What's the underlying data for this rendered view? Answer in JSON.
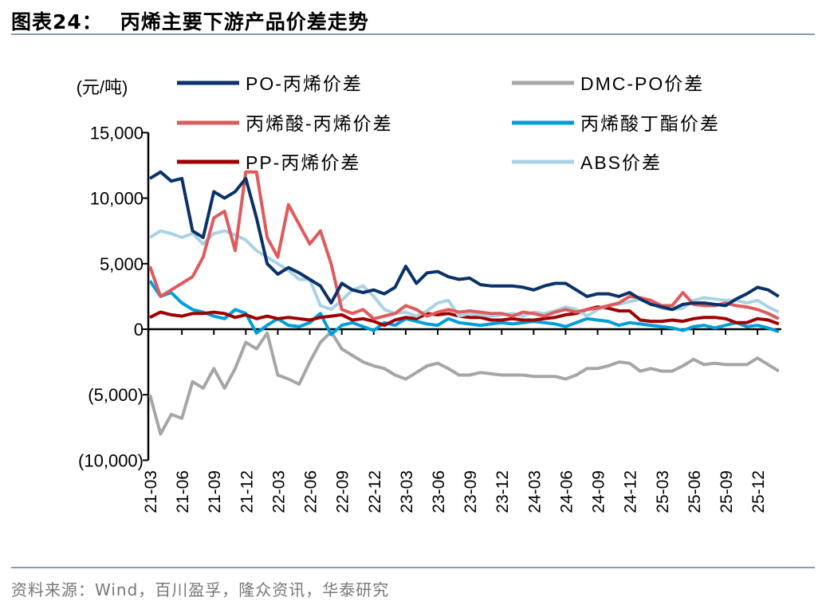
{
  "title_prefix": "图表24：",
  "title": "丙烯主要下游产品价差走势",
  "source": "资料来源：Wind，百川盈孚，隆众资讯，华泰研究",
  "chart_data": {
    "type": "line",
    "unit_label": "(元/吨)",
    "ylim": [
      -10000,
      15000
    ],
    "yticks": [
      15000,
      10000,
      5000,
      0,
      -5000,
      -10000
    ],
    "ytick_labels": [
      "15,000",
      "10,000",
      "5,000",
      "0",
      "(5,000)",
      "(10,000)"
    ],
    "xtick_labels": [
      "21-03",
      "21-06",
      "21-09",
      "21-12",
      "22-03",
      "22-06",
      "22-09",
      "22-12",
      "23-03",
      "23-06",
      "23-09",
      "23-12",
      "24-03",
      "24-06",
      "24-09",
      "24-12",
      "25-03",
      "25-06",
      "25-09",
      "25-12"
    ],
    "x": [
      "21-03",
      "21-04",
      "21-05",
      "21-06",
      "21-07",
      "21-08",
      "21-09",
      "21-10",
      "21-11",
      "21-12",
      "22-01",
      "22-02",
      "22-03",
      "22-04",
      "22-05",
      "22-06",
      "22-07",
      "22-08",
      "22-09",
      "22-10",
      "22-11",
      "22-12",
      "23-01",
      "23-02",
      "23-03",
      "23-04",
      "23-05",
      "23-06",
      "23-07",
      "23-08",
      "23-09",
      "23-10",
      "23-11",
      "23-12",
      "24-01",
      "24-02",
      "24-03",
      "24-04",
      "24-05",
      "24-06",
      "24-07",
      "24-08",
      "24-09",
      "24-10",
      "24-11",
      "24-12",
      "25-01",
      "25-02",
      "25-03",
      "25-04",
      "25-05",
      "25-06",
      "25-07",
      "25-08",
      "25-09",
      "25-10",
      "25-11",
      "25-12",
      "26-01",
      "26-02"
    ],
    "legend_placement": "top",
    "grid": false,
    "series": [
      {
        "name": "PO-丙烯价差",
        "color": "#0a3269",
        "values": [
          11500,
          12000,
          11300,
          11500,
          7500,
          7000,
          10500,
          10000,
          10500,
          11500,
          8500,
          5000,
          4200,
          4700,
          4300,
          3800,
          3300,
          2000,
          3500,
          3000,
          2800,
          3000,
          2700,
          3200,
          4800,
          3500,
          4300,
          4400,
          4000,
          3800,
          3900,
          3400,
          3300,
          3300,
          3300,
          3200,
          3000,
          3300,
          3500,
          3500,
          3000,
          2500,
          2700,
          2700,
          2500,
          2800,
          2300,
          1900,
          1700,
          1500,
          1900,
          2000,
          2000,
          1900,
          1800,
          2300,
          2700,
          3200,
          3000,
          2500
        ]
      },
      {
        "name": "DMC-PO价差",
        "color": "#a6a6a6",
        "values": [
          -5000,
          -8000,
          -6500,
          -6800,
          -4000,
          -4500,
          -3000,
          -4500,
          -3000,
          -1000,
          -1500,
          -300,
          -3500,
          -3800,
          -4200,
          -2500,
          -1000,
          -200,
          -1500,
          -2000,
          -2500,
          -2800,
          -3000,
          -3500,
          -3800,
          -3300,
          -2800,
          -2600,
          -3000,
          -3500,
          -3500,
          -3300,
          -3400,
          -3500,
          -3500,
          -3500,
          -3600,
          -3600,
          -3600,
          -3800,
          -3500,
          -3000,
          -3000,
          -2800,
          -2500,
          -2600,
          -3200,
          -3000,
          -3200,
          -3200,
          -2800,
          -2300,
          -2700,
          -2600,
          -2700,
          -2700,
          -2700,
          -2200,
          -2700,
          -3200
        ]
      },
      {
        "name": "丙烯酸-丙烯价差",
        "color": "#e05a5c",
        "values": [
          4800,
          2500,
          3000,
          3500,
          4000,
          5500,
          8500,
          9000,
          6000,
          12000,
          12000,
          7000,
          5500,
          9500,
          8000,
          6500,
          7500,
          5000,
          1500,
          1200,
          1500,
          800,
          1000,
          1200,
          1800,
          1500,
          1000,
          1300,
          1500,
          1300,
          1400,
          1300,
          1200,
          1200,
          1000,
          1300,
          1200,
          1000,
          1300,
          1500,
          1300,
          1500,
          1600,
          1800,
          2000,
          2500,
          2400,
          2200,
          1800,
          1800,
          2800,
          1900,
          1800,
          1800,
          2000,
          1800,
          1700,
          1500,
          1200,
          800
        ]
      },
      {
        "name": "丙烯酸丁酯价差",
        "color": "#009fdb",
        "values": [
          3700,
          2500,
          2800,
          2000,
          1500,
          1300,
          1000,
          800,
          1500,
          1200,
          -300,
          300,
          800,
          300,
          200,
          500,
          1200,
          -400,
          300,
          500,
          200,
          -100,
          500,
          300,
          800,
          600,
          400,
          300,
          800,
          500,
          400,
          300,
          400,
          500,
          400,
          500,
          600,
          500,
          400,
          200,
          500,
          800,
          700,
          600,
          300,
          500,
          400,
          300,
          200,
          100,
          -100,
          200,
          300,
          100,
          300,
          500,
          200,
          300,
          100,
          -200
        ]
      },
      {
        "name": "PP-丙烯价差",
        "color": "#a00000",
        "values": [
          900,
          1300,
          1100,
          1000,
          1200,
          1200,
          1300,
          1200,
          900,
          1100,
          800,
          1000,
          800,
          900,
          800,
          700,
          900,
          1000,
          1100,
          700,
          800,
          600,
          300,
          700,
          900,
          800,
          1200,
          1100,
          1200,
          1000,
          900,
          900,
          700,
          700,
          800,
          700,
          700,
          800,
          900,
          1100,
          1200,
          1500,
          1700,
          1600,
          1400,
          1400,
          700,
          600,
          600,
          700,
          600,
          800,
          900,
          900,
          800,
          500,
          500,
          800,
          700,
          400
        ]
      },
      {
        "name": "ABS价差",
        "color": "#a9d3e4",
        "values": [
          7000,
          7500,
          7300,
          7000,
          7300,
          6500,
          7300,
          7500,
          7200,
          6800,
          6000,
          5500,
          5000,
          4500,
          3800,
          3800,
          1800,
          1500,
          2200,
          3000,
          3300,
          2500,
          1500,
          1200,
          1300,
          1000,
          1400,
          2000,
          2200,
          1000,
          1200,
          1100,
          1000,
          1100,
          1200,
          1000,
          1300,
          1200,
          1400,
          1700,
          1500,
          1000,
          1500,
          1800,
          1900,
          2100,
          2300,
          2000,
          1600,
          1500,
          1600,
          2200,
          2400,
          2300,
          2200,
          2200,
          2000,
          2200,
          1700,
          1300
        ]
      }
    ]
  }
}
